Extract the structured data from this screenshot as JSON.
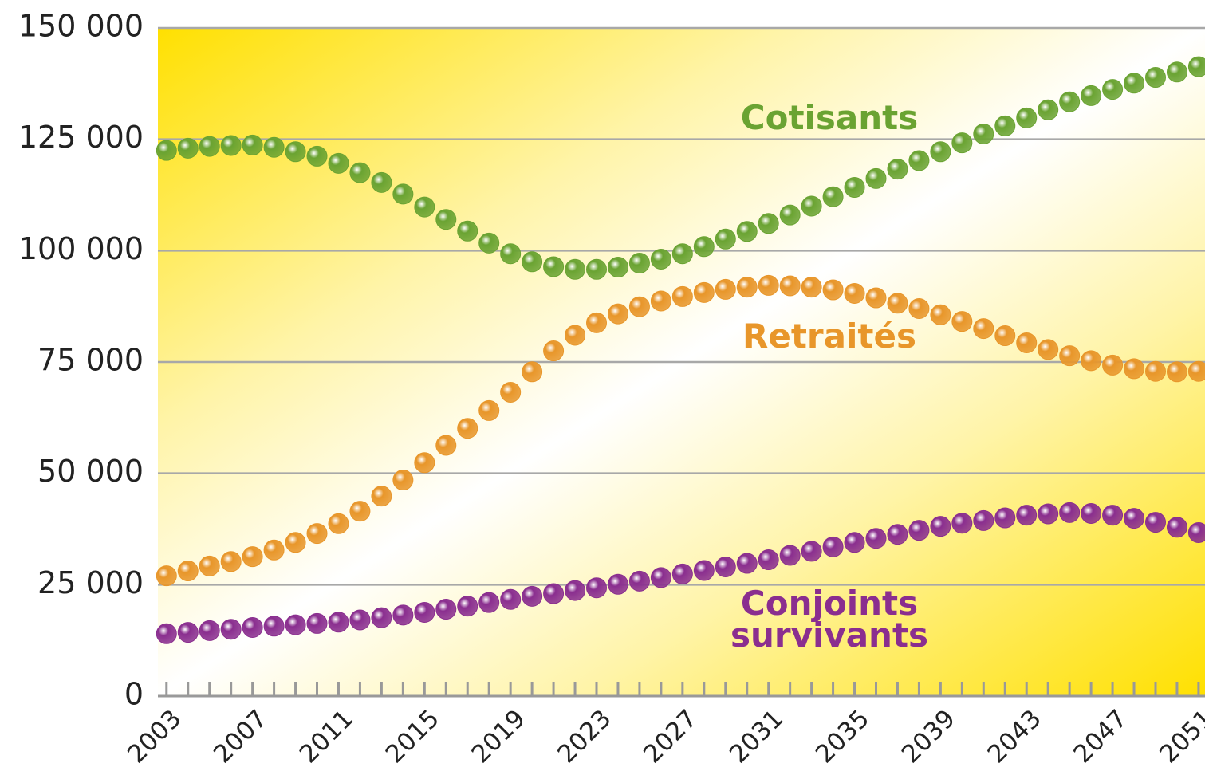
{
  "chart_data": {
    "type": "line",
    "x": [
      2003,
      2004,
      2005,
      2006,
      2007,
      2008,
      2009,
      2010,
      2011,
      2012,
      2013,
      2014,
      2015,
      2016,
      2017,
      2018,
      2019,
      2020,
      2021,
      2022,
      2023,
      2024,
      2025,
      2026,
      2027,
      2028,
      2029,
      2030,
      2031,
      2032,
      2033,
      2034,
      2035,
      2036,
      2037,
      2038,
      2039,
      2040,
      2041,
      2042,
      2043,
      2044,
      2045,
      2046,
      2047,
      2048,
      2049,
      2050,
      2051
    ],
    "series": [
      {
        "name": "Cotisants",
        "color": "#6aa332",
        "values": [
          122500,
          123000,
          123400,
          123600,
          123700,
          123200,
          122200,
          121200,
          119600,
          117500,
          115300,
          112700,
          109800,
          107000,
          104400,
          101700,
          99300,
          97500,
          96400,
          95800,
          95800,
          96300,
          97200,
          98100,
          99300,
          100900,
          102600,
          104300,
          106100,
          108000,
          110000,
          112100,
          114200,
          116200,
          118300,
          120200,
          122200,
          124200,
          126200,
          128000,
          129800,
          131600,
          133400,
          134800,
          136200,
          137600,
          138900,
          140100,
          141300
        ]
      },
      {
        "name": "Retraités",
        "color": "#e8962a",
        "values": [
          27000,
          28100,
          29200,
          30200,
          31300,
          32800,
          34500,
          36500,
          38700,
          41500,
          44900,
          48500,
          52400,
          56300,
          60100,
          64100,
          68200,
          72800,
          77500,
          81000,
          83800,
          85800,
          87400,
          88700,
          89700,
          90600,
          91300,
          91800,
          92200,
          92100,
          91800,
          91200,
          90400,
          89400,
          88200,
          87000,
          85600,
          84100,
          82500,
          80900,
          79300,
          77800,
          76400,
          75300,
          74300,
          73500,
          72900,
          72800,
          72900
        ]
      },
      {
        "name": "Conjoints survivants",
        "color": "#8a2e8f",
        "values": [
          14000,
          14300,
          14700,
          15000,
          15400,
          15700,
          16000,
          16300,
          16600,
          17100,
          17600,
          18200,
          18800,
          19500,
          20200,
          21000,
          21700,
          22400,
          23000,
          23700,
          24300,
          25100,
          25800,
          26600,
          27400,
          28200,
          29000,
          29800,
          30600,
          31600,
          32500,
          33500,
          34500,
          35400,
          36300,
          37200,
          38100,
          38800,
          39400,
          40000,
          40600,
          40900,
          41200,
          41000,
          40600,
          39900,
          39000,
          37900,
          36700
        ]
      }
    ],
    "xlim": [
      2002.6,
      2051.3
    ],
    "xticks": [
      2003,
      2007,
      2011,
      2015,
      2019,
      2023,
      2027,
      2031,
      2035,
      2039,
      2043,
      2047,
      2051
    ],
    "ylim": [
      0,
      150000
    ],
    "yticks": [
      0,
      {
        "value": 25000,
        "label": "25 000"
      },
      {
        "value": 50000,
        "label": "50 000"
      },
      {
        "value": 75000,
        "label": "75 000"
      },
      {
        "value": 100000,
        "label": "100 000"
      },
      {
        "value": 125000,
        "label": "125 000"
      },
      {
        "value": 150000,
        "label": "150 000"
      }
    ],
    "grid": true
  }
}
